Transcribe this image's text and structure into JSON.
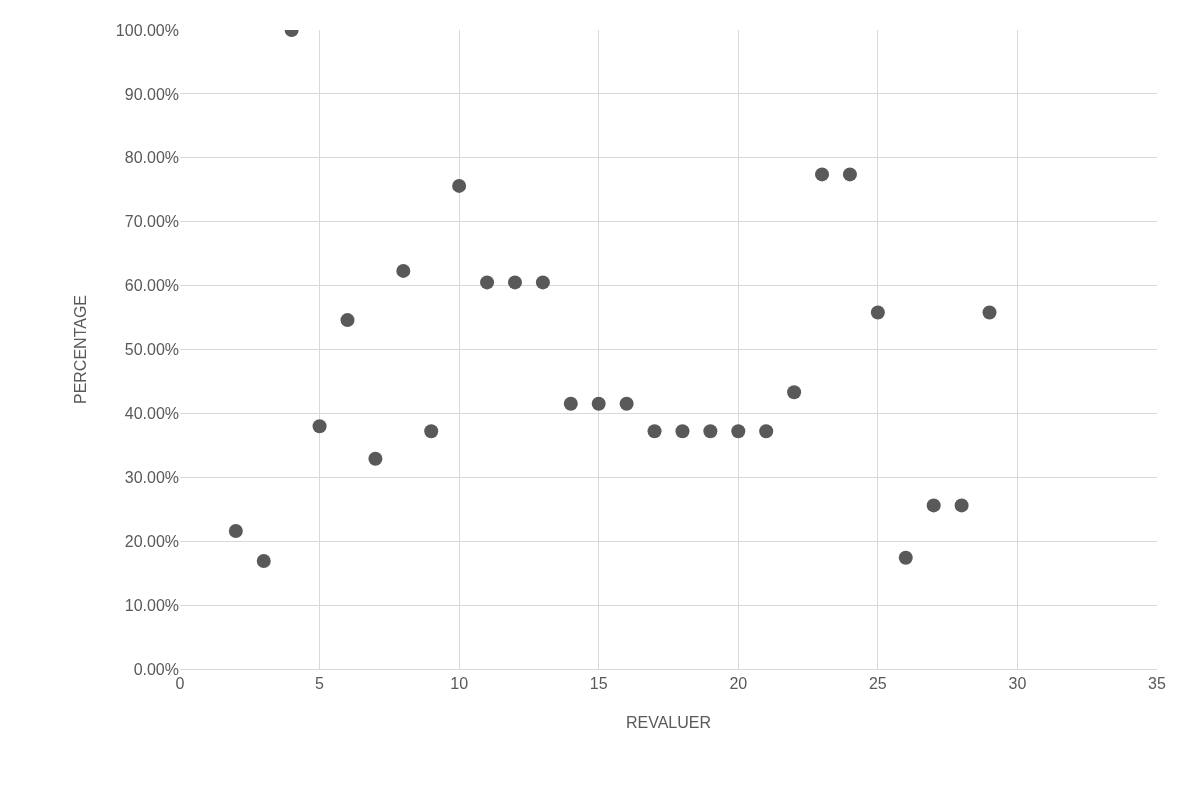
{
  "chart_data": {
    "type": "scatter",
    "xlabel": "REVALUER",
    "ylabel": "PERCENTAGE",
    "x": [
      2,
      3,
      4,
      5,
      6,
      7,
      8,
      9,
      10,
      11,
      12,
      13,
      14,
      15,
      16,
      17,
      18,
      19,
      20,
      21,
      22,
      23,
      24,
      25,
      26,
      27,
      28,
      29
    ],
    "series": [
      {
        "color": "#595959",
        "values": [
          21.6,
          16.9,
          100,
          38.0,
          54.6,
          32.9,
          62.3,
          37.2,
          75.6,
          60.5,
          60.5,
          60.5,
          41.5,
          41.5,
          41.5,
          37.2,
          37.2,
          37.2,
          37.2,
          37.2,
          43.3,
          77.4,
          77.4,
          55.8,
          17.4,
          25.6,
          25.6,
          55.8
        ]
      }
    ],
    "xlim": [
      0,
      35
    ],
    "xticks": [
      0,
      5,
      10,
      15,
      20,
      25,
      30,
      35
    ],
    "ylim": [
      0,
      100
    ],
    "yticks": [
      {
        "value": 0,
        "label": "0.00%"
      },
      {
        "value": 10,
        "label": "10.00%"
      },
      {
        "value": 20,
        "label": "20.00%"
      },
      {
        "value": 30,
        "label": "30.00%"
      },
      {
        "value": 40,
        "label": "40.00%"
      },
      {
        "value": 50,
        "label": "50.00%"
      },
      {
        "value": 60,
        "label": "60.00%"
      },
      {
        "value": 70,
        "label": "70.00%"
      },
      {
        "value": 80,
        "label": "80.00%"
      },
      {
        "value": 90,
        "label": "90.00%"
      },
      {
        "value": 100,
        "label": "100.00%"
      }
    ],
    "grid": true,
    "marker": "circle"
  }
}
